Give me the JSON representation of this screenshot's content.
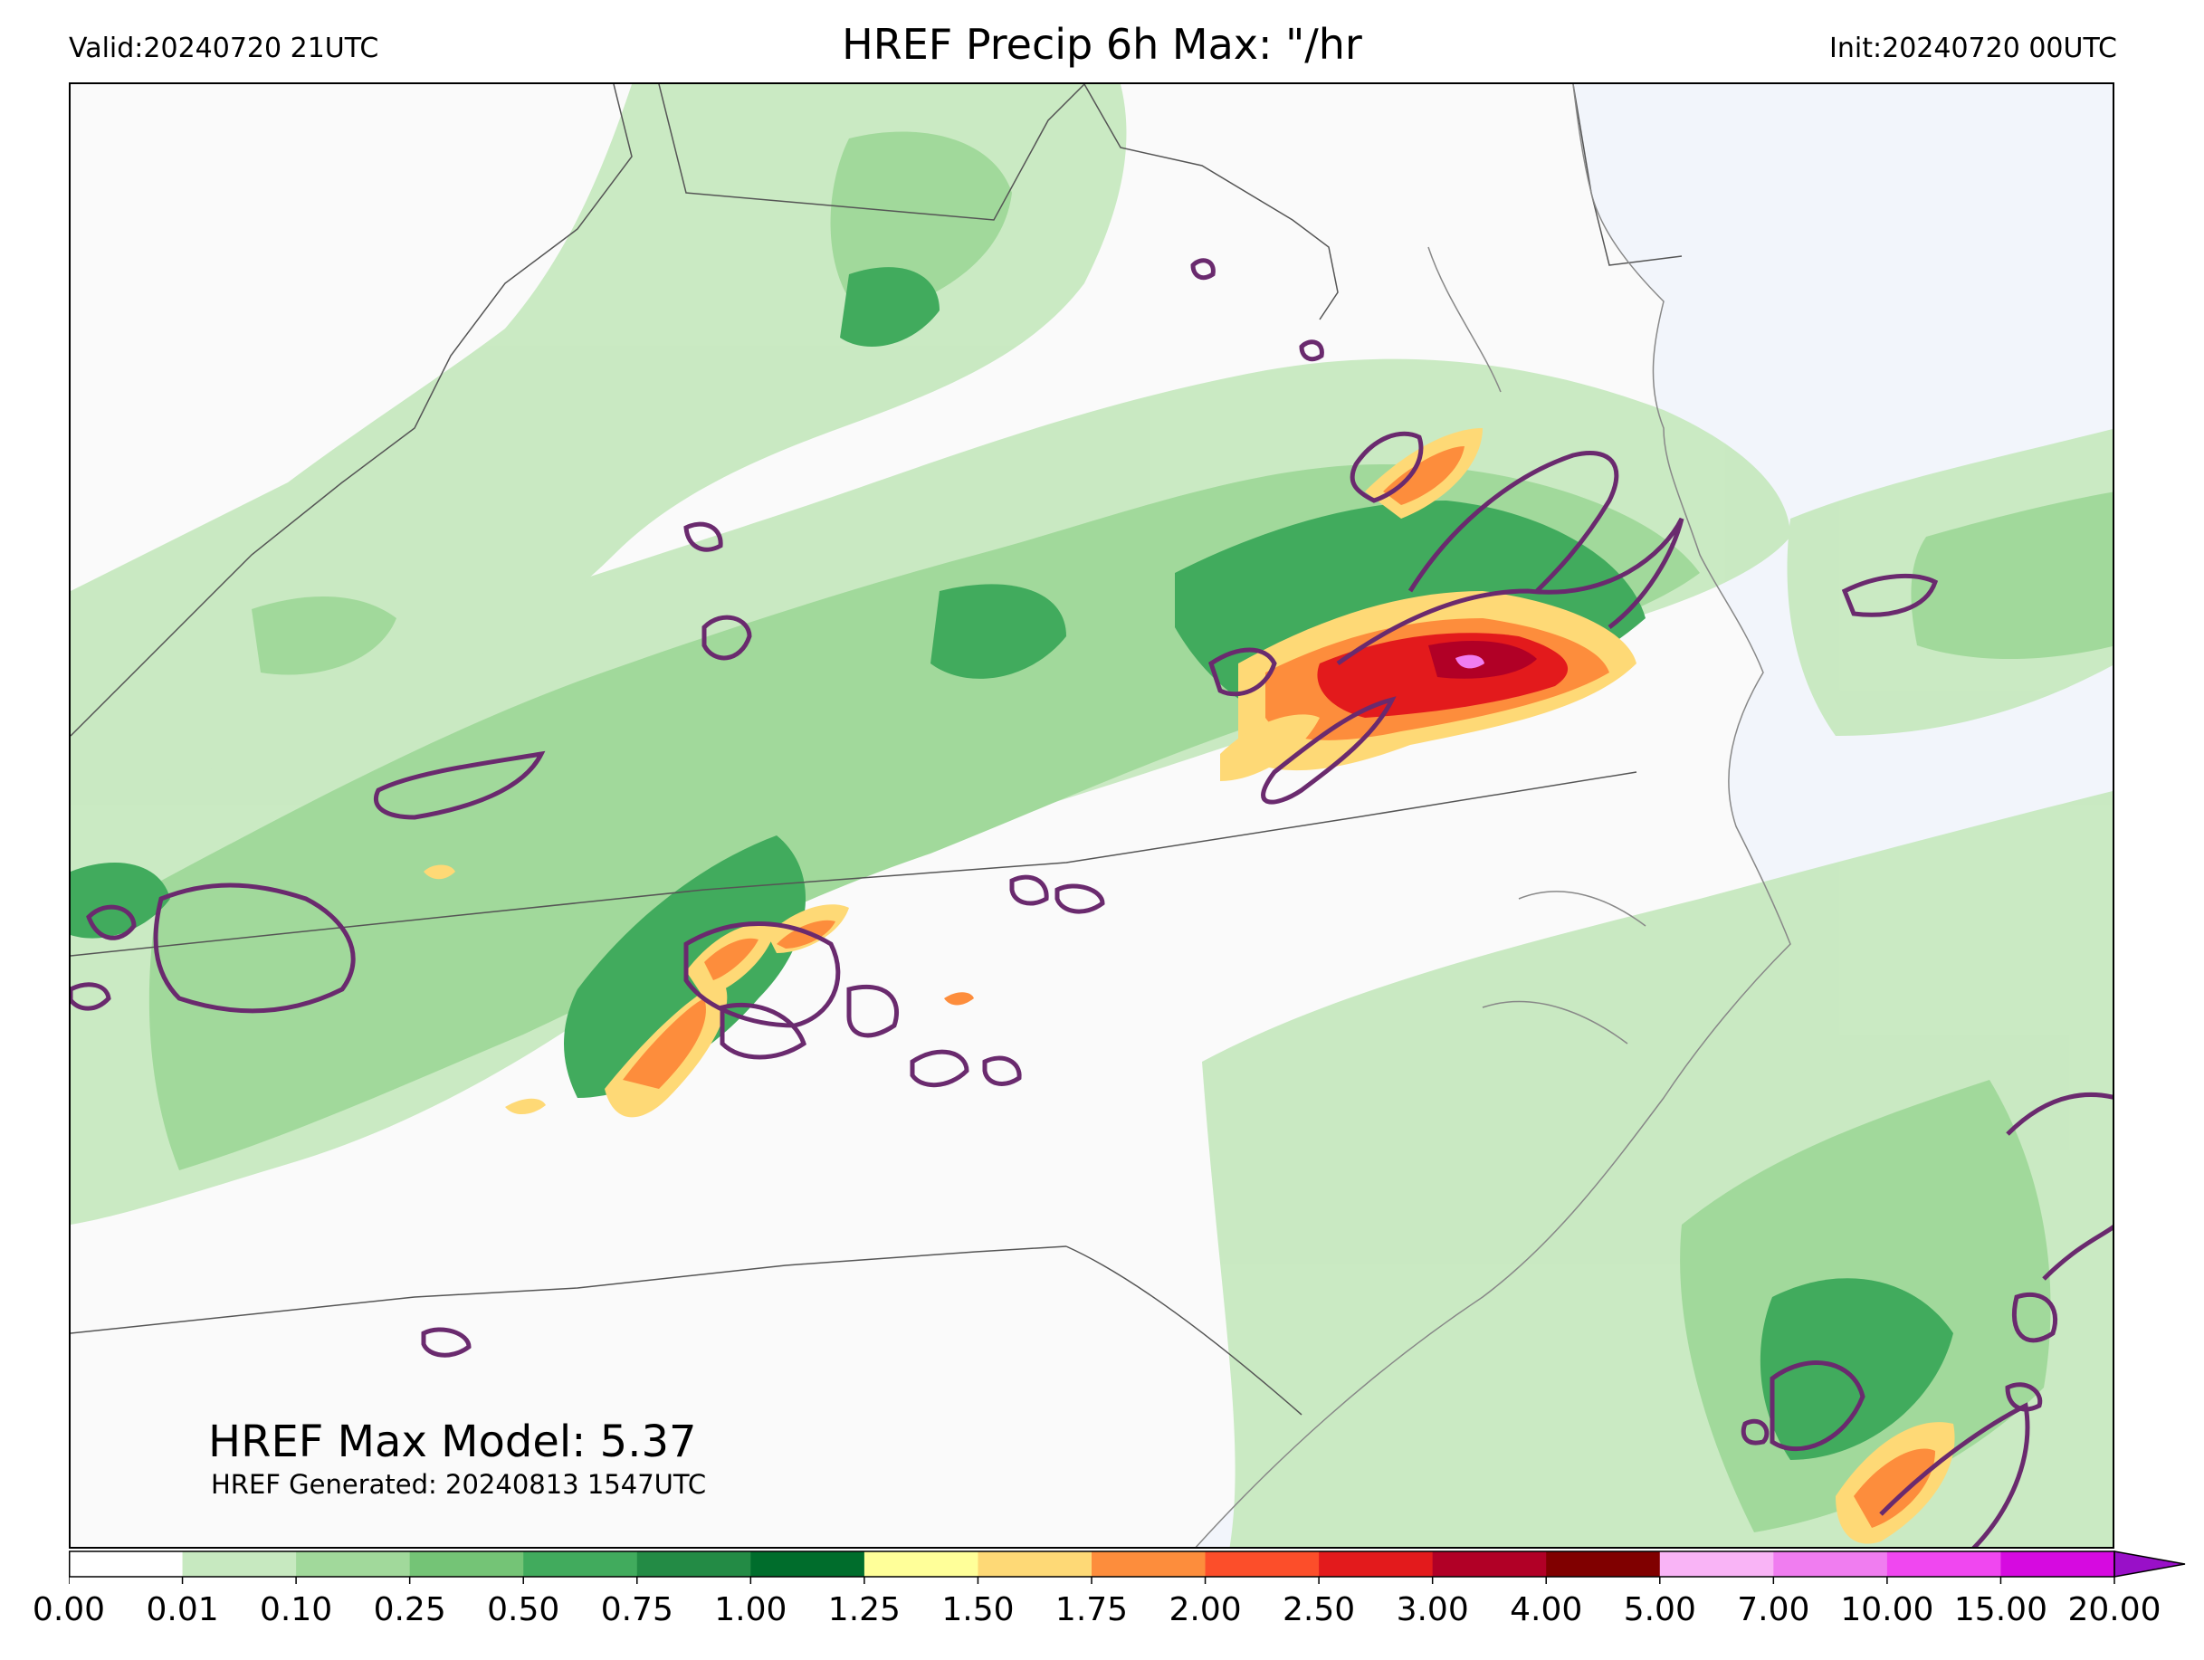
{
  "header": {
    "valid": "Valid:20240720 21UTC",
    "title": "HREF Precip 6h Max: \"/hr",
    "init": "Init:20240720 00UTC"
  },
  "annotations": {
    "max_model": "HREF Max Model: 5.37",
    "generated": "HREF Generated: 20240813 1547UTC"
  },
  "colorbar": {
    "levels": [
      "0.00",
      "0.01",
      "0.10",
      "0.25",
      "0.50",
      "0.75",
      "1.00",
      "1.25",
      "1.50",
      "1.75",
      "2.00",
      "2.50",
      "3.00",
      "4.00",
      "5.00",
      "7.00",
      "10.00",
      "15.00",
      "20.00"
    ],
    "colors": [
      "#ffffff",
      "#c7e9c0",
      "#a1d99b",
      "#74c476",
      "#41ab5d",
      "#238b45",
      "#006d2c",
      "#ffff99",
      "#fed976",
      "#fd8d3c",
      "#fc4e2a",
      "#e31a1c",
      "#b10026",
      "#800000",
      "#f9b4f6",
      "#f07df0",
      "#f047f0",
      "#d60ae0",
      "#9910c8"
    ],
    "extend_color": "#9910c8"
  },
  "map": {
    "background": "#fafafa",
    "ocean": "#f2f5fb",
    "contour_color": "#6a2a6e",
    "border_color": "#555555"
  }
}
